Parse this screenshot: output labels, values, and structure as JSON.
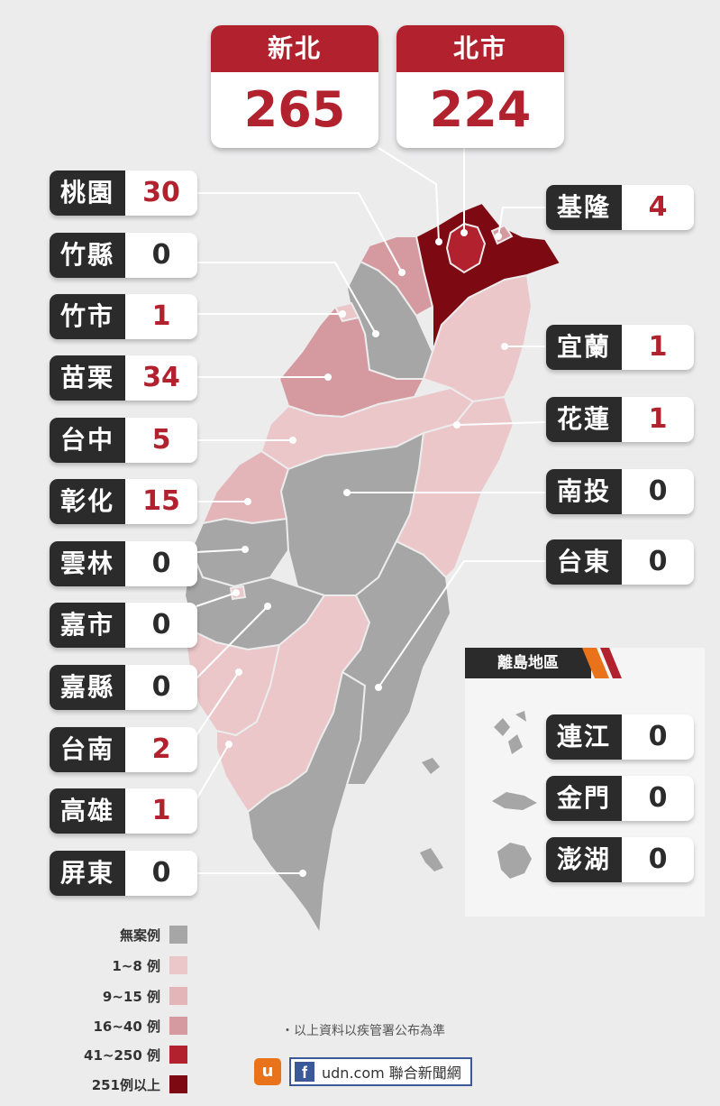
{
  "top_cards": [
    {
      "name": "新北",
      "count": "265"
    },
    {
      "name": "北市",
      "count": "224"
    }
  ],
  "left_counties": [
    {
      "name": "桃園",
      "count": "30"
    },
    {
      "name": "竹縣",
      "count": "0"
    },
    {
      "name": "竹市",
      "count": "1"
    },
    {
      "name": "苗栗",
      "count": "34"
    },
    {
      "name": "台中",
      "count": "5"
    },
    {
      "name": "彰化",
      "count": "15"
    },
    {
      "name": "雲林",
      "count": "0"
    },
    {
      "name": "嘉市",
      "count": "0"
    },
    {
      "name": "嘉縣",
      "count": "0"
    },
    {
      "name": "台南",
      "count": "2"
    },
    {
      "name": "高雄",
      "count": "1"
    },
    {
      "name": "屏東",
      "count": "0"
    }
  ],
  "right_counties": [
    {
      "name": "基隆",
      "count": "4"
    },
    {
      "name": "宜蘭",
      "count": "1"
    },
    {
      "name": "花蓮",
      "count": "1"
    },
    {
      "name": "南投",
      "count": "0"
    },
    {
      "name": "台東",
      "count": "0"
    }
  ],
  "islands": {
    "title": "離島地區",
    "items": [
      {
        "name": "連江",
        "count": "0"
      },
      {
        "name": "金門",
        "count": "0"
      },
      {
        "name": "澎湖",
        "count": "0"
      }
    ]
  },
  "legend": [
    {
      "label": "無案例",
      "color": "#a6a6a6"
    },
    {
      "label": "1~8 例",
      "color": "#ebc7c9"
    },
    {
      "label": "9~15 例",
      "color": "#e3b4b8"
    },
    {
      "label": "16~40 例",
      "color": "#d59aa0"
    },
    {
      "label": "41~250 例",
      "color": "#b2212e"
    },
    {
      "label": "251例以上",
      "color": "#7d0a12"
    }
  ],
  "note": "・以上資料以疾管署公布為準",
  "brand": {
    "logo": "u",
    "fb": "f",
    "text": "udn.com 聯合新聞網"
  },
  "colors": {
    "accent": "#b2212e",
    "dark": "#2b2b2b",
    "none": "#a6a6a6"
  }
}
